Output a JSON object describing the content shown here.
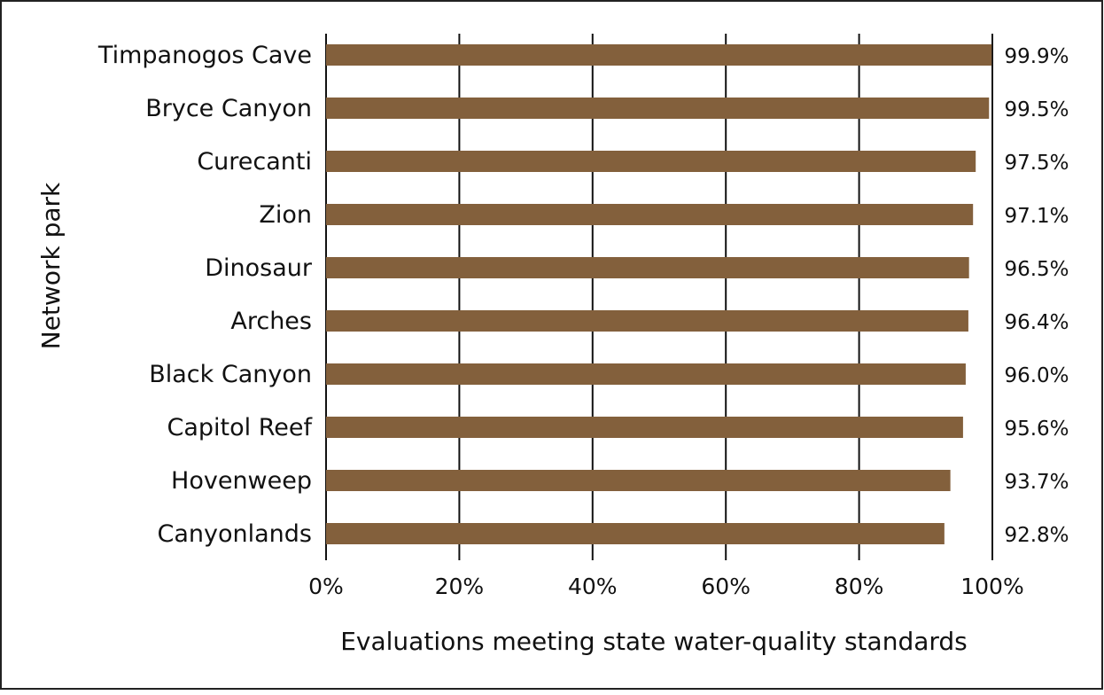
{
  "chart_data": {
    "type": "bar",
    "orientation": "horizontal",
    "categories": [
      "Timpanogos Cave",
      "Bryce Canyon",
      "Curecanti",
      "Zion",
      "Dinosaur",
      "Arches",
      "Black Canyon",
      "Capitol Reef",
      "Hovenweep",
      "Canyonlands"
    ],
    "values": [
      99.9,
      99.5,
      97.5,
      97.1,
      96.5,
      96.4,
      96.0,
      95.6,
      93.7,
      92.8
    ],
    "value_labels": [
      "99.9%",
      "99.5%",
      "97.5%",
      "97.1%",
      "96.5%",
      "96.4%",
      "96.0%",
      "95.6%",
      "93.7%",
      "92.8%"
    ],
    "xlabel": "Evaluations meeting state water-quality standards",
    "ylabel": "Network park",
    "xlim": [
      0,
      100
    ],
    "x_ticks": [
      0,
      20,
      40,
      60,
      80,
      100
    ],
    "x_tick_labels": [
      "0%",
      "20%",
      "40%",
      "60%",
      "80%",
      "100%"
    ],
    "grid": "vertical",
    "legend": "none",
    "bar_color": "#83603c"
  }
}
